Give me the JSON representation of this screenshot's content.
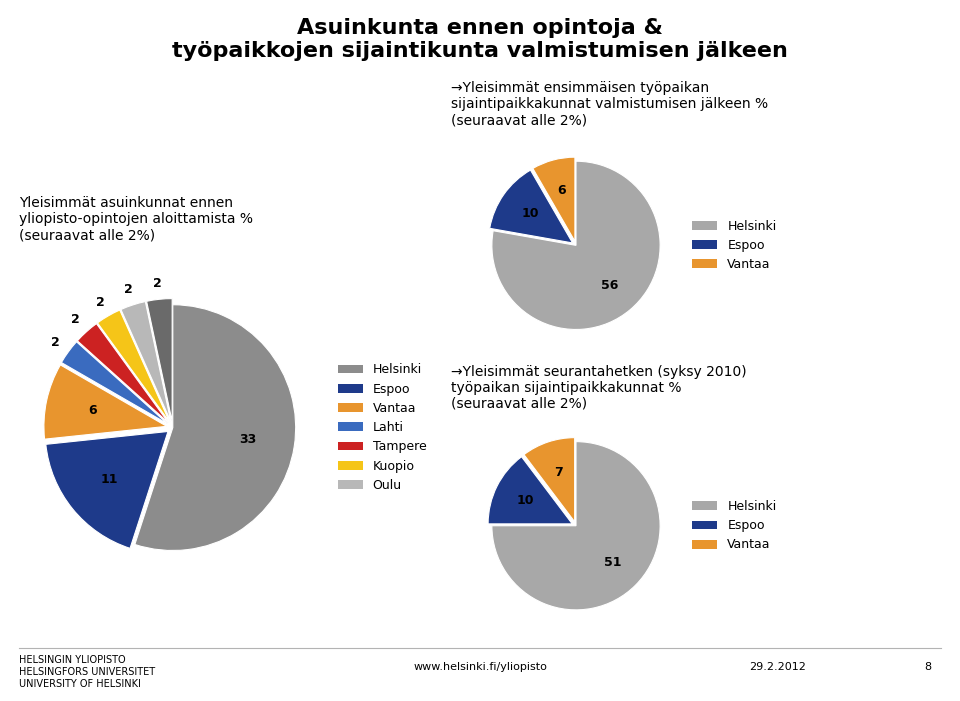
{
  "title": "Asuinkunta ennen opintoja &\ntyöpaikkojen sijaintikunta valmistumisen jälkeen",
  "annotations": [
    "HELSINGIN YLIOPISTO\nHELSINGFORS UNIVERSITET\nUNIVERSITY OF HELSINKI",
    "www.helsinki.fi/yliopisto",
    "29.2.2012",
    "8"
  ],
  "chart_data": [
    {
      "type": "pie",
      "title": "Yleisimmät asuinkunnat ennen\nyliopisto-opintojen aloittamista %\n(seuraavat alle 2%)",
      "categories": [
        "Helsinki",
        "Espoo",
        "Vantaa",
        "Lahti",
        "Tampere",
        "Kuopio",
        "Oulu",
        null
      ],
      "values": [
        33,
        11,
        6,
        2,
        2,
        2,
        2,
        2
      ],
      "colors": [
        "#8c8c8c",
        "#1e3a8a",
        "#e8952e",
        "#3a6bbf",
        "#cc2222",
        "#f5c518",
        "#b8b8b8",
        "#6a6a6a"
      ],
      "data_labels": true,
      "legend": "right"
    },
    {
      "type": "pie",
      "title": "→Yleisimmät ensimmäisen työpaikan\nsijaintipaikkakunnat valmistumisen jälkeen %\n(seuraavat alle 2%)",
      "categories": [
        "Helsinki",
        "Espoo",
        "Vantaa"
      ],
      "values": [
        56,
        10,
        6
      ],
      "colors": [
        "#a8a8a8",
        "#1e3a8a",
        "#e8952e"
      ],
      "data_labels": true,
      "legend": "right"
    },
    {
      "type": "pie",
      "title": "→Yleisimmät seurantahetken (syksy 2010)\ntyöpaikan sijaintipaikkakunnat %\n(seuraavat alle 2%)",
      "categories": [
        "Helsinki",
        "Espoo",
        "Vantaa"
      ],
      "values": [
        51,
        10,
        7
      ],
      "colors": [
        "#a8a8a8",
        "#1e3a8a",
        "#e8952e"
      ],
      "data_labels": true,
      "legend": "right"
    }
  ]
}
